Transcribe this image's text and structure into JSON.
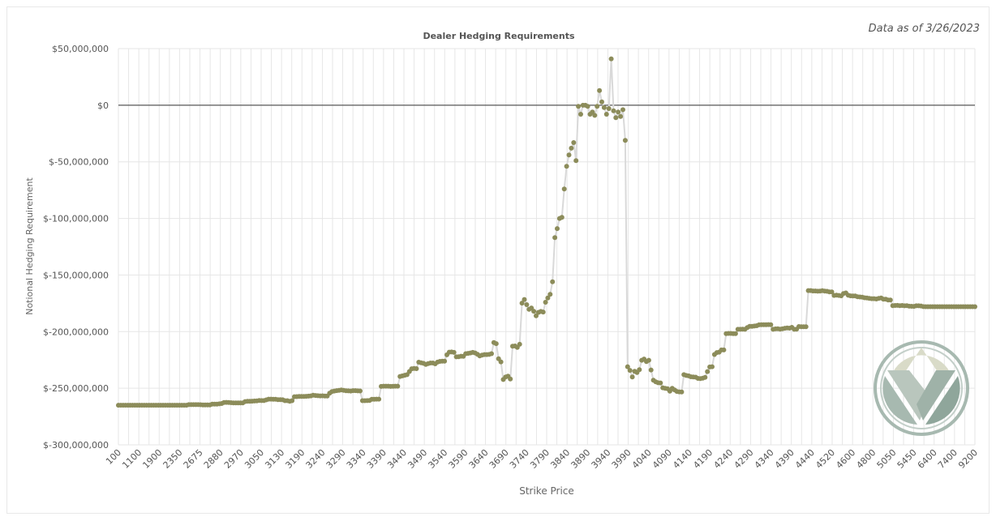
{
  "annotation": "Data as of 3/26/2023",
  "colors": {
    "points": "#8c8c5a",
    "line": "#d9d9d9",
    "grid": "#e6e6e6",
    "zero_line": "#333333",
    "logo": "#a7b9b0"
  },
  "logo": {
    "icon": "vertex-v-logo-icon"
  },
  "chart_data": {
    "type": "line",
    "title": "Dealer Hedging Requirements",
    "xlabel": "Strike Price",
    "ylabel": "Notional Hedging Requirement",
    "ylim": [
      -300000000,
      50000000
    ],
    "yticks": [
      "$50,000,000",
      "$0",
      "$-50,000,000",
      "$-100,000,000",
      "$-150,000,000",
      "$-200,000,000",
      "$-250,000,000",
      "$-300,000,000"
    ],
    "ytick_values": [
      50000000,
      0,
      -50000000,
      -100000000,
      -150000000,
      -200000000,
      -250000000,
      -300000000
    ],
    "xtick_labels": [
      "100",
      "1100",
      "1900",
      "2350",
      "2675",
      "2880",
      "2970",
      "3050",
      "3130",
      "3190",
      "3240",
      "3290",
      "3340",
      "3390",
      "3440",
      "3490",
      "3540",
      "3590",
      "3640",
      "3690",
      "3740",
      "3790",
      "3840",
      "3890",
      "3940",
      "3990",
      "4040",
      "4090",
      "4140",
      "4190",
      "4240",
      "4290",
      "4340",
      "4390",
      "4440",
      "4520",
      "4600",
      "4800",
      "5050",
      "5450",
      "6400",
      "7400",
      "9200"
    ],
    "grid": true,
    "marker": "circle",
    "series": [
      {
        "values": [
          -265000000,
          -265000000,
          -265000000,
          -265000000,
          -265000000,
          -265000000,
          -265000000,
          -265000000,
          -265000000,
          -265000000,
          -265000000,
          -265000000,
          -265000000,
          -265000000,
          -265000000,
          -265000000,
          -265000000,
          -265000000,
          -265000000,
          -265000000,
          -265000000,
          -265000000,
          -265000000,
          -265000000,
          -265000000,
          -265000000,
          -265000000,
          -265000000,
          -265000000,
          -265000000,
          -264500000,
          -264500000,
          -264500000,
          -264500000,
          -264500000,
          -264600000,
          -264700000,
          -264700000,
          -264700000,
          -264700000,
          -264000000,
          -264000000,
          -264000000,
          -263800000,
          -263500000,
          -262600000,
          -262500000,
          -262600000,
          -262800000,
          -262900000,
          -262900000,
          -262900000,
          -262900000,
          -262900000,
          -261800000,
          -261500000,
          -261500000,
          -261400000,
          -261300000,
          -261200000,
          -260800000,
          -260900000,
          -260900000,
          -260300000,
          -259600000,
          -259600000,
          -259700000,
          -259700000,
          -260100000,
          -260100000,
          -260200000,
          -261000000,
          -261000000,
          -261500000,
          -261000000,
          -257500000,
          -257400000,
          -257300000,
          -257200000,
          -257200000,
          -257100000,
          -257000000,
          -256800000,
          -256200000,
          -256400000,
          -256600000,
          -256800000,
          -256700000,
          -256900000,
          -256900000,
          -254400000,
          -253000000,
          -252500000,
          -252100000,
          -251800000,
          -251500000,
          -251800000,
          -252200000,
          -252300000,
          -252500000,
          -252100000,
          -252100000,
          -252300000,
          -252400000,
          -261000000,
          -261000000,
          -260900000,
          -260800000,
          -259800000,
          -259700000,
          -259600000,
          -259600000,
          -248400000,
          -248200000,
          -248200000,
          -248200000,
          -248400000,
          -248300000,
          -248200000,
          -248200000,
          -239600000,
          -239100000,
          -238500000,
          -238000000,
          -235200000,
          -232800000,
          -232600000,
          -232700000,
          -227000000,
          -227600000,
          -228000000,
          -228900000,
          -228200000,
          -227700000,
          -227700000,
          -228400000,
          -226900000,
          -226300000,
          -226100000,
          -226100000,
          -220500000,
          -218100000,
          -218000000,
          -218300000,
          -222300000,
          -222100000,
          -221700000,
          -221800000,
          -219500000,
          -219200000,
          -218800000,
          -218300000,
          -218800000,
          -220000000,
          -221500000,
          -220800000,
          -220300000,
          -220300000,
          -220100000,
          -219500000,
          -209700000,
          -210600000,
          -224000000,
          -226700000,
          -242300000,
          -240000000,
          -239300000,
          -241900000,
          -212900000,
          -212700000,
          -213900000,
          -211200000,
          -174800000,
          -171600000,
          -176200000,
          -180300000,
          -179100000,
          -182000000,
          -186000000,
          -183000000,
          -182200000,
          -182700000,
          -174000000,
          -170200000,
          -167000000,
          -156000000,
          -117000000,
          -109000000,
          -100000000,
          -99000000,
          -74000000,
          -54000000,
          -44000000,
          -38000000,
          -33000000,
          -49000000,
          -1000000,
          -8000000,
          0,
          0,
          -1000000,
          -8000000,
          -6000000,
          -9000000,
          -1000000,
          13000000,
          3000000,
          -2000000,
          -8000000,
          -3000000,
          41000000,
          -5000000,
          -11000000,
          -6000000,
          -10000000,
          -4000000,
          -31000000,
          -231000000,
          -234200000,
          -240000000,
          -235100000,
          -236100000,
          -233600000,
          -225300000,
          -224200000,
          -226400000,
          -225300000,
          -233900000,
          -242900000,
          -244400000,
          -245200000,
          -245300000,
          -249600000,
          -250100000,
          -250400000,
          -252600000,
          -250100000,
          -251500000,
          -252800000,
          -253200000,
          -253300000,
          -238000000,
          -238700000,
          -239100000,
          -239900000,
          -240100000,
          -240200000,
          -241300000,
          -241500000,
          -241100000,
          -240400000,
          -235300000,
          -231200000,
          -231000000,
          -220200000,
          -218500000,
          -218100000,
          -216200000,
          -216200000,
          -201800000,
          -201600000,
          -201600000,
          -201700000,
          -201800000,
          -197900000,
          -197900000,
          -197800000,
          -197900000,
          -196400000,
          -195300000,
          -195300000,
          -195100000,
          -194800000,
          -194000000,
          -193900000,
          -193900000,
          -193900000,
          -193800000,
          -193900000,
          -197900000,
          -197600000,
          -197500000,
          -197800000,
          -197500000,
          -197000000,
          -196800000,
          -196900000,
          -196200000,
          -197900000,
          -197800000,
          -195500000,
          -195700000,
          -195700000,
          -195700000,
          -163700000,
          -163700000,
          -164100000,
          -164100000,
          -164300000,
          -164200000,
          -163900000,
          -164200000,
          -164400000,
          -164900000,
          -164900000,
          -168000000,
          -167800000,
          -168000000,
          -168400000,
          -166400000,
          -165800000,
          -167900000,
          -168400000,
          -168500000,
          -168500000,
          -169200000,
          -169400000,
          -169500000,
          -170100000,
          -170200000,
          -170700000,
          -170900000,
          -170900000,
          -171200000,
          -170600000,
          -170300000,
          -171300000,
          -171400000,
          -172000000,
          -172100000,
          -177000000,
          -176900000,
          -176800000,
          -177100000,
          -176900000,
          -177200000,
          -177100000,
          -177500000,
          -177600000,
          -177700000,
          -177200000,
          -177200000,
          -177300000,
          -177900000,
          -178000000,
          -178000000,
          -178000000,
          -178000000,
          -178000000,
          -178000000,
          -178000000,
          -178000000,
          -178000000,
          -178000000,
          -178000000,
          -178000000,
          -178000000,
          -178000000,
          -178000000,
          -178000000,
          -178000000,
          -178000000,
          -178000000,
          -178000000,
          -178000000,
          -178000000
        ]
      }
    ]
  }
}
